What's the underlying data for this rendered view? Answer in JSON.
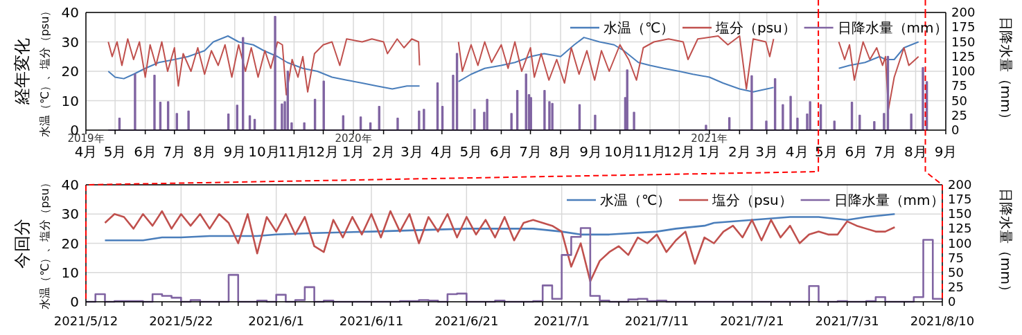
{
  "chart_data": [
    {
      "type": "line",
      "title": "経年変化",
      "ylabel": "水温（℃）、塩分（psu）",
      "y2label": "日降水量（mm）",
      "xlim": [
        "2019-04-01",
        "2021-09-01"
      ],
      "xticks": [
        {
          "value": "2019-04-01",
          "label": "2019年\n4月"
        },
        {
          "value": "2019-05-01",
          "label": "5月"
        },
        {
          "value": "2019-06-01",
          "label": "6月"
        },
        {
          "value": "2019-07-01",
          "label": "7月"
        },
        {
          "value": "2019-08-01",
          "label": "8月"
        },
        {
          "value": "2019-09-01",
          "label": "9月"
        },
        {
          "value": "2019-10-01",
          "label": "10月"
        },
        {
          "value": "2019-11-01",
          "label": "11月"
        },
        {
          "value": "2019-12-01",
          "label": "12月"
        },
        {
          "value": "2020-01-01",
          "label": "2020年\n1月"
        },
        {
          "value": "2020-02-01",
          "label": "2月"
        },
        {
          "value": "2020-03-01",
          "label": "3月"
        },
        {
          "value": "2020-04-01",
          "label": "4月"
        },
        {
          "value": "2020-05-01",
          "label": "5月"
        },
        {
          "value": "2020-06-01",
          "label": "6月"
        },
        {
          "value": "2020-07-01",
          "label": "7月"
        },
        {
          "value": "2020-08-01",
          "label": "8月"
        },
        {
          "value": "2020-09-01",
          "label": "9月"
        },
        {
          "value": "2020-10-01",
          "label": "10月"
        },
        {
          "value": "2020-11-01",
          "label": "11月"
        },
        {
          "value": "2020-12-01",
          "label": "12月"
        },
        {
          "value": "2021-01-01",
          "label": "2021年\n1月"
        },
        {
          "value": "2021-02-01",
          "label": "2月"
        },
        {
          "value": "2021-03-01",
          "label": "3月"
        },
        {
          "value": "2021-04-01",
          "label": "4月"
        },
        {
          "value": "2021-05-01",
          "label": "5月"
        },
        {
          "value": "2021-06-01",
          "label": "6月"
        },
        {
          "value": "2021-07-01",
          "label": "7月"
        },
        {
          "value": "2021-08-01",
          "label": "8月"
        },
        {
          "value": "2021-09-01",
          "label": "9月"
        }
      ],
      "ylim": [
        0,
        40
      ],
      "yticks": [
        0,
        10,
        20,
        30,
        40
      ],
      "y2lim": [
        0,
        200
      ],
      "y2ticks": [
        0,
        25,
        50,
        75,
        100,
        125,
        150,
        175,
        200
      ],
      "grid": true,
      "legend": "top right",
      "ref_lines": [
        {
          "axis": "x",
          "value": "2021-04-23",
          "color": "#ff0000",
          "line_style": "dashed"
        },
        {
          "axis": "x",
          "value": "2021-08-11",
          "color": "#ff0000",
          "line_style": "dashed"
        }
      ],
      "series": [
        {
          "name": "水温（℃）",
          "color": "#4a7ebb",
          "x": [
            "2019-04-24",
            "2019-05-01",
            "2019-05-10",
            "2019-05-20",
            "2019-06-01",
            "2019-06-15",
            "2019-07-01",
            "2019-07-15",
            "2019-08-01",
            "2019-08-10",
            "2019-08-25",
            "2019-09-05",
            "2019-09-20",
            "2019-10-01",
            "2019-10-15",
            "2019-10-25",
            "2019-11-10",
            "2019-11-25",
            "2019-12-10",
            "2019-12-25",
            "2020-01-10",
            "2020-01-25",
            "2020-02-10",
            "2020-02-25",
            "2020-03-09",
            "2020-04-01",
            "2020-04-18",
            "2020-05-01",
            "2020-05-15",
            "2020-06-01",
            "2020-06-15",
            "2020-07-01",
            "2020-07-15",
            "2020-08-01",
            "2020-08-15",
            "2020-08-25",
            "2020-09-10",
            "2020-09-25",
            "2020-10-05",
            "2020-10-20",
            "2020-11-01",
            "2020-11-15",
            "2020-12-01",
            "2020-12-15",
            "2021-01-01",
            "2021-01-15",
            "2021-02-01",
            "2021-02-15",
            "2021-03-01",
            "2021-03-08",
            "2021-04-15",
            "2021-05-14",
            "2021-05-25",
            "2021-06-10",
            "2021-06-25",
            "2021-07-01",
            "2021-07-10",
            "2021-07-20",
            "2021-08-04"
          ],
          "values": [
            20,
            18,
            17.5,
            19,
            21,
            23,
            24,
            25,
            27,
            30,
            32,
            30,
            29,
            27,
            25,
            23,
            21,
            20,
            18,
            17,
            16,
            15,
            14,
            15,
            15,
            null,
            16.5,
            19,
            21,
            22,
            23,
            25,
            26,
            25,
            29,
            31.5,
            30,
            29,
            27,
            23,
            22,
            21,
            20,
            19,
            18,
            16,
            14,
            13,
            14,
            14.5,
            null,
            21,
            22,
            23,
            25,
            24,
            24,
            28,
            30
          ]
        },
        {
          "name": "塩分（psu）",
          "color": "#c0504d",
          "x": [
            "2019-04-24",
            "2019-04-28",
            "2019-05-03",
            "2019-05-08",
            "2019-05-14",
            "2019-05-20",
            "2019-05-26",
            "2019-06-01",
            "2019-06-06",
            "2019-06-12",
            "2019-06-18",
            "2019-06-24",
            "2019-07-01",
            "2019-07-05",
            "2019-07-10",
            "2019-07-18",
            "2019-07-25",
            "2019-08-01",
            "2019-08-08",
            "2019-08-15",
            "2019-08-22",
            "2019-08-29",
            "2019-09-05",
            "2019-09-12",
            "2019-09-18",
            "2019-09-25",
            "2019-10-02",
            "2019-10-08",
            "2019-10-15",
            "2019-10-20",
            "2019-10-24",
            "2019-10-30",
            "2019-11-05",
            "2019-11-10",
            "2019-11-15",
            "2019-11-22",
            "2019-12-01",
            "2019-12-10",
            "2019-12-18",
            "2019-12-25",
            "2020-01-10",
            "2020-01-20",
            "2020-02-01",
            "2020-02-05",
            "2020-02-15",
            "2020-02-22",
            "2020-03-01",
            "2020-03-08",
            "2020-03-09",
            "2020-04-01",
            "2020-04-18",
            "2020-04-22",
            "2020-05-01",
            "2020-05-08",
            "2020-05-15",
            "2020-05-22",
            "2020-06-01",
            "2020-06-08",
            "2020-06-15",
            "2020-06-22",
            "2020-07-01",
            "2020-07-05",
            "2020-07-12",
            "2020-07-20",
            "2020-07-28",
            "2020-08-05",
            "2020-08-12",
            "2020-08-20",
            "2020-08-28",
            "2020-09-05",
            "2020-09-12",
            "2020-09-20",
            "2020-10-01",
            "2020-10-10",
            "2020-10-18",
            "2020-10-25",
            "2020-11-05",
            "2020-11-20",
            "2020-12-05",
            "2020-12-10",
            "2020-12-20",
            "2021-01-10",
            "2021-01-20",
            "2021-02-01",
            "2021-02-08",
            "2021-02-15",
            "2021-02-28",
            "2021-03-04",
            "2021-03-08",
            "2021-04-15",
            "2021-05-14",
            "2021-05-20",
            "2021-05-25",
            "2021-05-30",
            "2021-06-08",
            "2021-06-15",
            "2021-06-22",
            "2021-06-28",
            "2021-07-01",
            "2021-07-04",
            "2021-07-10",
            "2021-07-20",
            "2021-07-25",
            "2021-08-04"
          ],
          "values": [
            30,
            25,
            30,
            22,
            31,
            24,
            30,
            18,
            29,
            22,
            30,
            20,
            28,
            15,
            26,
            20,
            28,
            19,
            27,
            22,
            29,
            18,
            29,
            20,
            28,
            18,
            27,
            21,
            30,
            29,
            12,
            24,
            18,
            25,
            13,
            26,
            29,
            30,
            22,
            31,
            30,
            31,
            30,
            26,
            31,
            28,
            31,
            30,
            22,
            null,
            30,
            20,
            29,
            22,
            30,
            23,
            29,
            21,
            30,
            20,
            28,
            18,
            26,
            17,
            24,
            16,
            28,
            19,
            27,
            17,
            27,
            20,
            29,
            24,
            17,
            28,
            30,
            31,
            30,
            24,
            31,
            32,
            29,
            32,
            14,
            31,
            30,
            25,
            31,
            null,
            30,
            24,
            29,
            17,
            30,
            24,
            28,
            22,
            25,
            7,
            18,
            28,
            22,
            25
          ]
        },
        {
          "name": "日降水量（mm）",
          "color": "#8064a2",
          "type": "step",
          "axis": "y2",
          "x": [
            "2019-04-24",
            "2019-05-05",
            "2019-05-06",
            "2019-05-21",
            "2019-05-22",
            "2019-06-10",
            "2019-06-11",
            "2019-06-16",
            "2019-06-17",
            "2019-06-24",
            "2019-06-25",
            "2019-07-03",
            "2019-07-04",
            "2019-07-15",
            "2019-07-16",
            "2019-08-25",
            "2019-08-26",
            "2019-09-03",
            "2019-09-04",
            "2019-09-09",
            "2019-09-10",
            "2019-09-16",
            "2019-09-17",
            "2019-09-21",
            "2019-09-22",
            "2019-10-12",
            "2019-10-13",
            "2019-10-19",
            "2019-10-20",
            "2019-10-22",
            "2019-10-23",
            "2019-10-25",
            "2019-10-26",
            "2019-10-29",
            "2019-10-30",
            "2019-11-11",
            "2019-11-12",
            "2019-11-22",
            "2019-11-23",
            "2019-12-01",
            "2019-12-02",
            "2019-12-21",
            "2019-12-22",
            "2020-01-08",
            "2020-01-09",
            "2020-01-18",
            "2020-01-19",
            "2020-01-27",
            "2020-01-28",
            "2020-02-15",
            "2020-02-16",
            "2020-03-08",
            "2020-03-09",
            "2020-03-13",
            "2020-03-14",
            "2020-03-27",
            "2020-03-28",
            "2020-04-01",
            "2020-04-02",
            "2020-04-12",
            "2020-04-13",
            "2020-04-16",
            "2020-04-17",
            "2020-05-04",
            "2020-05-05",
            "2020-05-14",
            "2020-05-15",
            "2020-05-17",
            "2020-05-18",
            "2020-06-11",
            "2020-06-12",
            "2020-06-17",
            "2020-06-18",
            "2020-06-26",
            "2020-06-27",
            "2020-06-29",
            "2020-06-30",
            "2020-07-01",
            "2020-07-02",
            "2020-07-15",
            "2020-07-16",
            "2020-07-20",
            "2020-07-21",
            "2020-07-23",
            "2020-07-24",
            "2020-08-20",
            "2020-08-21",
            "2020-09-05",
            "2020-09-06",
            "2020-10-06",
            "2020-10-07",
            "2020-10-08",
            "2020-10-09",
            "2020-10-15",
            "2020-10-16",
            "2020-12-28",
            "2020-12-29",
            "2021-01-21",
            "2021-01-22",
            "2021-02-13",
            "2021-02-14",
            "2021-02-28",
            "2021-03-01",
            "2021-03-09",
            "2021-03-10",
            "2021-03-17",
            "2021-03-18",
            "2021-03-25",
            "2021-03-26",
            "2021-04-01",
            "2021-04-02",
            "2021-04-11",
            "2021-04-12",
            "2021-04-14",
            "2021-04-15",
            "2021-04-25",
            "2021-04-26",
            "2021-05-09",
            "2021-05-10",
            "2021-05-27",
            "2021-05-28",
            "2021-06-04",
            "2021-06-05",
            "2021-06-19",
            "2021-06-20",
            "2021-06-29",
            "2021-06-30",
            "2021-07-03",
            "2021-07-04",
            "2021-07-27",
            "2021-07-28",
            "2021-08-08",
            "2021-08-09",
            "2021-08-12",
            "2021-08-13"
          ],
          "values": [
            0,
            20,
            0,
            95,
            0,
            93,
            0,
            47,
            0,
            48,
            0,
            28,
            0,
            32,
            0,
            27,
            0,
            42,
            0,
            157,
            0,
            24,
            0,
            18,
            0,
            193,
            0,
            44,
            0,
            48,
            0,
            100,
            0,
            12,
            0,
            12,
            0,
            52,
            0,
            83,
            0,
            24,
            0,
            22,
            0,
            12,
            0,
            40,
            0,
            20,
            0,
            32,
            0,
            35,
            0,
            80,
            0,
            40,
            0,
            93,
            0,
            130,
            0,
            35,
            0,
            30,
            0,
            52,
            0,
            28,
            0,
            67,
            0,
            95,
            0,
            60,
            0,
            55,
            0,
            67,
            0,
            48,
            0,
            45,
            0,
            43,
            0,
            25,
            0,
            55,
            0,
            102,
            0,
            30,
            0,
            8,
            0,
            21,
            0,
            92,
            0,
            15,
            0,
            87,
            0,
            43,
            0,
            57,
            0,
            20,
            0,
            27,
            0,
            48,
            0,
            43,
            0,
            15,
            0,
            47,
            0,
            25,
            0,
            14,
            0,
            28,
            0,
            125,
            0,
            27,
            0,
            106,
            0,
            82,
            0
          ]
        }
      ]
    },
    {
      "type": "line",
      "title": "今回分",
      "ylabel": "水温（℃）、塩分（psu）",
      "y2label": "日降水量（mm）",
      "xlim": [
        "2021-05-12",
        "2021-08-10"
      ],
      "xticks": [
        {
          "value": "2021-05-12",
          "label": "2021/5/12"
        },
        {
          "value": "2021-05-14",
          "label": null
        },
        {
          "value": "2021-05-16",
          "label": null
        },
        {
          "value": "2021-05-18",
          "label": null
        },
        {
          "value": "2021-05-20",
          "label": null
        },
        {
          "value": "2021-05-22",
          "label": "2021/5/22"
        },
        {
          "value": "2021-05-24",
          "label": null
        },
        {
          "value": "2021-05-26",
          "label": null
        },
        {
          "value": "2021-05-28",
          "label": null
        },
        {
          "value": "2021-05-30",
          "label": null
        },
        {
          "value": "2021-06-01",
          "label": "2021/6/1"
        },
        {
          "value": "2021-06-03",
          "label": null
        },
        {
          "value": "2021-06-05",
          "label": null
        },
        {
          "value": "2021-06-07",
          "label": null
        },
        {
          "value": "2021-06-09",
          "label": null
        },
        {
          "value": "2021-06-11",
          "label": "2021/6/11"
        },
        {
          "value": "2021-06-13",
          "label": null
        },
        {
          "value": "2021-06-15",
          "label": null
        },
        {
          "value": "2021-06-17",
          "label": null
        },
        {
          "value": "2021-06-19",
          "label": null
        },
        {
          "value": "2021-06-21",
          "label": "2021/6/21"
        },
        {
          "value": "2021-06-23",
          "label": null
        },
        {
          "value": "2021-06-25",
          "label": null
        },
        {
          "value": "2021-06-27",
          "label": null
        },
        {
          "value": "2021-06-29",
          "label": null
        },
        {
          "value": "2021-07-01",
          "label": "2021/7/1"
        },
        {
          "value": "2021-07-03",
          "label": null
        },
        {
          "value": "2021-07-05",
          "label": null
        },
        {
          "value": "2021-07-07",
          "label": null
        },
        {
          "value": "2021-07-09",
          "label": null
        },
        {
          "value": "2021-07-11",
          "label": "2021/7/11"
        },
        {
          "value": "2021-07-13",
          "label": null
        },
        {
          "value": "2021-07-15",
          "label": null
        },
        {
          "value": "2021-07-17",
          "label": null
        },
        {
          "value": "2021-07-19",
          "label": null
        },
        {
          "value": "2021-07-21",
          "label": "2021/7/21"
        },
        {
          "value": "2021-07-23",
          "label": null
        },
        {
          "value": "2021-07-25",
          "label": null
        },
        {
          "value": "2021-07-27",
          "label": null
        },
        {
          "value": "2021-07-29",
          "label": null
        },
        {
          "value": "2021-07-31",
          "label": "2021/7/31"
        },
        {
          "value": "2021-08-02",
          "label": null
        },
        {
          "value": "2021-08-04",
          "label": null
        },
        {
          "value": "2021-08-06",
          "label": null
        },
        {
          "value": "2021-08-08",
          "label": null
        },
        {
          "value": "2021-08-10",
          "label": "2021/8/10"
        }
      ],
      "ylim": [
        0,
        40
      ],
      "yticks": [
        0,
        10,
        20,
        30,
        40
      ],
      "y2lim": [
        0,
        200
      ],
      "y2ticks": [
        0,
        25,
        50,
        75,
        100,
        125,
        150,
        175,
        200
      ],
      "grid": true,
      "legend": "top right",
      "series": [
        {
          "name": "水温（℃）",
          "color": "#4a7ebb",
          "x": [
            "2021-05-14",
            "2021-05-18",
            "2021-05-20",
            "2021-05-22",
            "2021-05-25",
            "2021-05-28",
            "2021-05-30",
            "2021-06-01",
            "2021-06-05",
            "2021-06-11",
            "2021-06-21",
            "2021-06-28",
            "2021-07-01",
            "2021-07-03",
            "2021-07-06",
            "2021-07-11",
            "2021-07-13",
            "2021-07-16",
            "2021-07-17",
            "2021-07-21",
            "2021-07-25",
            "2021-07-28",
            "2021-07-31",
            "2021-08-02",
            "2021-08-05"
          ],
          "values": [
            21,
            21,
            22,
            22,
            22.5,
            22.5,
            22.5,
            23,
            23.5,
            24,
            25,
            25,
            24,
            23,
            23,
            24,
            25,
            26,
            27,
            28,
            29,
            29,
            28,
            29,
            30
          ]
        },
        {
          "name": "塩分（psu）",
          "color": "#c0504d",
          "x": [
            "2021-05-14",
            "2021-05-15",
            "2021-05-16",
            "2021-05-17",
            "2021-05-18",
            "2021-05-19",
            "2021-05-20",
            "2021-05-21",
            "2021-05-22",
            "2021-05-23",
            "2021-05-24",
            "2021-05-25",
            "2021-05-26",
            "2021-05-27",
            "2021-05-28",
            "2021-05-29",
            "2021-05-30",
            "2021-05-31",
            "2021-06-01",
            "2021-06-02",
            "2021-06-03",
            "2021-06-04",
            "2021-06-05",
            "2021-06-06",
            "2021-06-07",
            "2021-06-08",
            "2021-06-09",
            "2021-06-10",
            "2021-06-11",
            "2021-06-12",
            "2021-06-13",
            "2021-06-14",
            "2021-06-15",
            "2021-06-16",
            "2021-06-17",
            "2021-06-18",
            "2021-06-19",
            "2021-06-20",
            "2021-06-21",
            "2021-06-22",
            "2021-06-23",
            "2021-06-24",
            "2021-06-25",
            "2021-06-26",
            "2021-06-27",
            "2021-06-28",
            "2021-06-29",
            "2021-06-30",
            "2021-07-01",
            "2021-07-02",
            "2021-07-03",
            "2021-07-04",
            "2021-07-05",
            "2021-07-06",
            "2021-07-07",
            "2021-07-08",
            "2021-07-09",
            "2021-07-10",
            "2021-07-11",
            "2021-07-12",
            "2021-07-13",
            "2021-07-14",
            "2021-07-15",
            "2021-07-16",
            "2021-07-17",
            "2021-07-18",
            "2021-07-19",
            "2021-07-20",
            "2021-07-21",
            "2021-07-22",
            "2021-07-23",
            "2021-07-24",
            "2021-07-25",
            "2021-07-26",
            "2021-07-27",
            "2021-07-28",
            "2021-07-29",
            "2021-07-30",
            "2021-07-31",
            "2021-08-01",
            "2021-08-02",
            "2021-08-03",
            "2021-08-04",
            "2021-08-05"
          ],
          "values": [
            27,
            30,
            29,
            25,
            30,
            26,
            31,
            25,
            30,
            26,
            30,
            25,
            30,
            27,
            20,
            30,
            16.5,
            29,
            24,
            30,
            23,
            29,
            19,
            17,
            28,
            22,
            29,
            23,
            30,
            22,
            31,
            24,
            30,
            20,
            29,
            24,
            30,
            22,
            29,
            23,
            28,
            22,
            29,
            21,
            27,
            28,
            27,
            26,
            24,
            12,
            20,
            7,
            14,
            17,
            19,
            16,
            22,
            20,
            23,
            17,
            21,
            24,
            13,
            22,
            20,
            24,
            26,
            22,
            28,
            21,
            28,
            22,
            26,
            20,
            23,
            24,
            23,
            23,
            27.5,
            26,
            25,
            24,
            24,
            25.5
          ]
        },
        {
          "name": "日降水量（mm）",
          "color": "#8064a2",
          "type": "step",
          "axis": "y2",
          "x": [
            "2021-05-12",
            "2021-05-13",
            "2021-05-14",
            "2021-05-15",
            "2021-05-17",
            "2021-05-18",
            "2021-05-19",
            "2021-05-20",
            "2021-05-21",
            "2021-05-22",
            "2021-05-23",
            "2021-05-24",
            "2021-05-27",
            "2021-05-28",
            "2021-05-30",
            "2021-05-31",
            "2021-06-01",
            "2021-06-02",
            "2021-06-03",
            "2021-06-04",
            "2021-06-05",
            "2021-06-06",
            "2021-06-07",
            "2021-06-14",
            "2021-06-16",
            "2021-06-17",
            "2021-06-18",
            "2021-06-19",
            "2021-06-20",
            "2021-06-21",
            "2021-06-24",
            "2021-06-25",
            "2021-06-28",
            "2021-06-29",
            "2021-06-30",
            "2021-07-01",
            "2021-07-02",
            "2021-07-03",
            "2021-07-04",
            "2021-07-05",
            "2021-07-06",
            "2021-07-08",
            "2021-07-09",
            "2021-07-10",
            "2021-07-11",
            "2021-07-12",
            "2021-07-27",
            "2021-07-28",
            "2021-07-30",
            "2021-07-31",
            "2021-08-02",
            "2021-08-03",
            "2021-08-04",
            "2021-08-07",
            "2021-08-08",
            "2021-08-09",
            "2021-08-10"
          ],
          "values": [
            0,
            13,
            0,
            1,
            1,
            0,
            13,
            10,
            7,
            0,
            3,
            0,
            46,
            0,
            2,
            0,
            12,
            0,
            3,
            25,
            0,
            2,
            0,
            1,
            3,
            2,
            0,
            13,
            14,
            0,
            2,
            0,
            1,
            28,
            5,
            80,
            111,
            126,
            10,
            2,
            0,
            4,
            5,
            1,
            2,
            0,
            27,
            0,
            1,
            0,
            1,
            8,
            0,
            8,
            106,
            5,
            5
          ]
        }
      ]
    }
  ]
}
